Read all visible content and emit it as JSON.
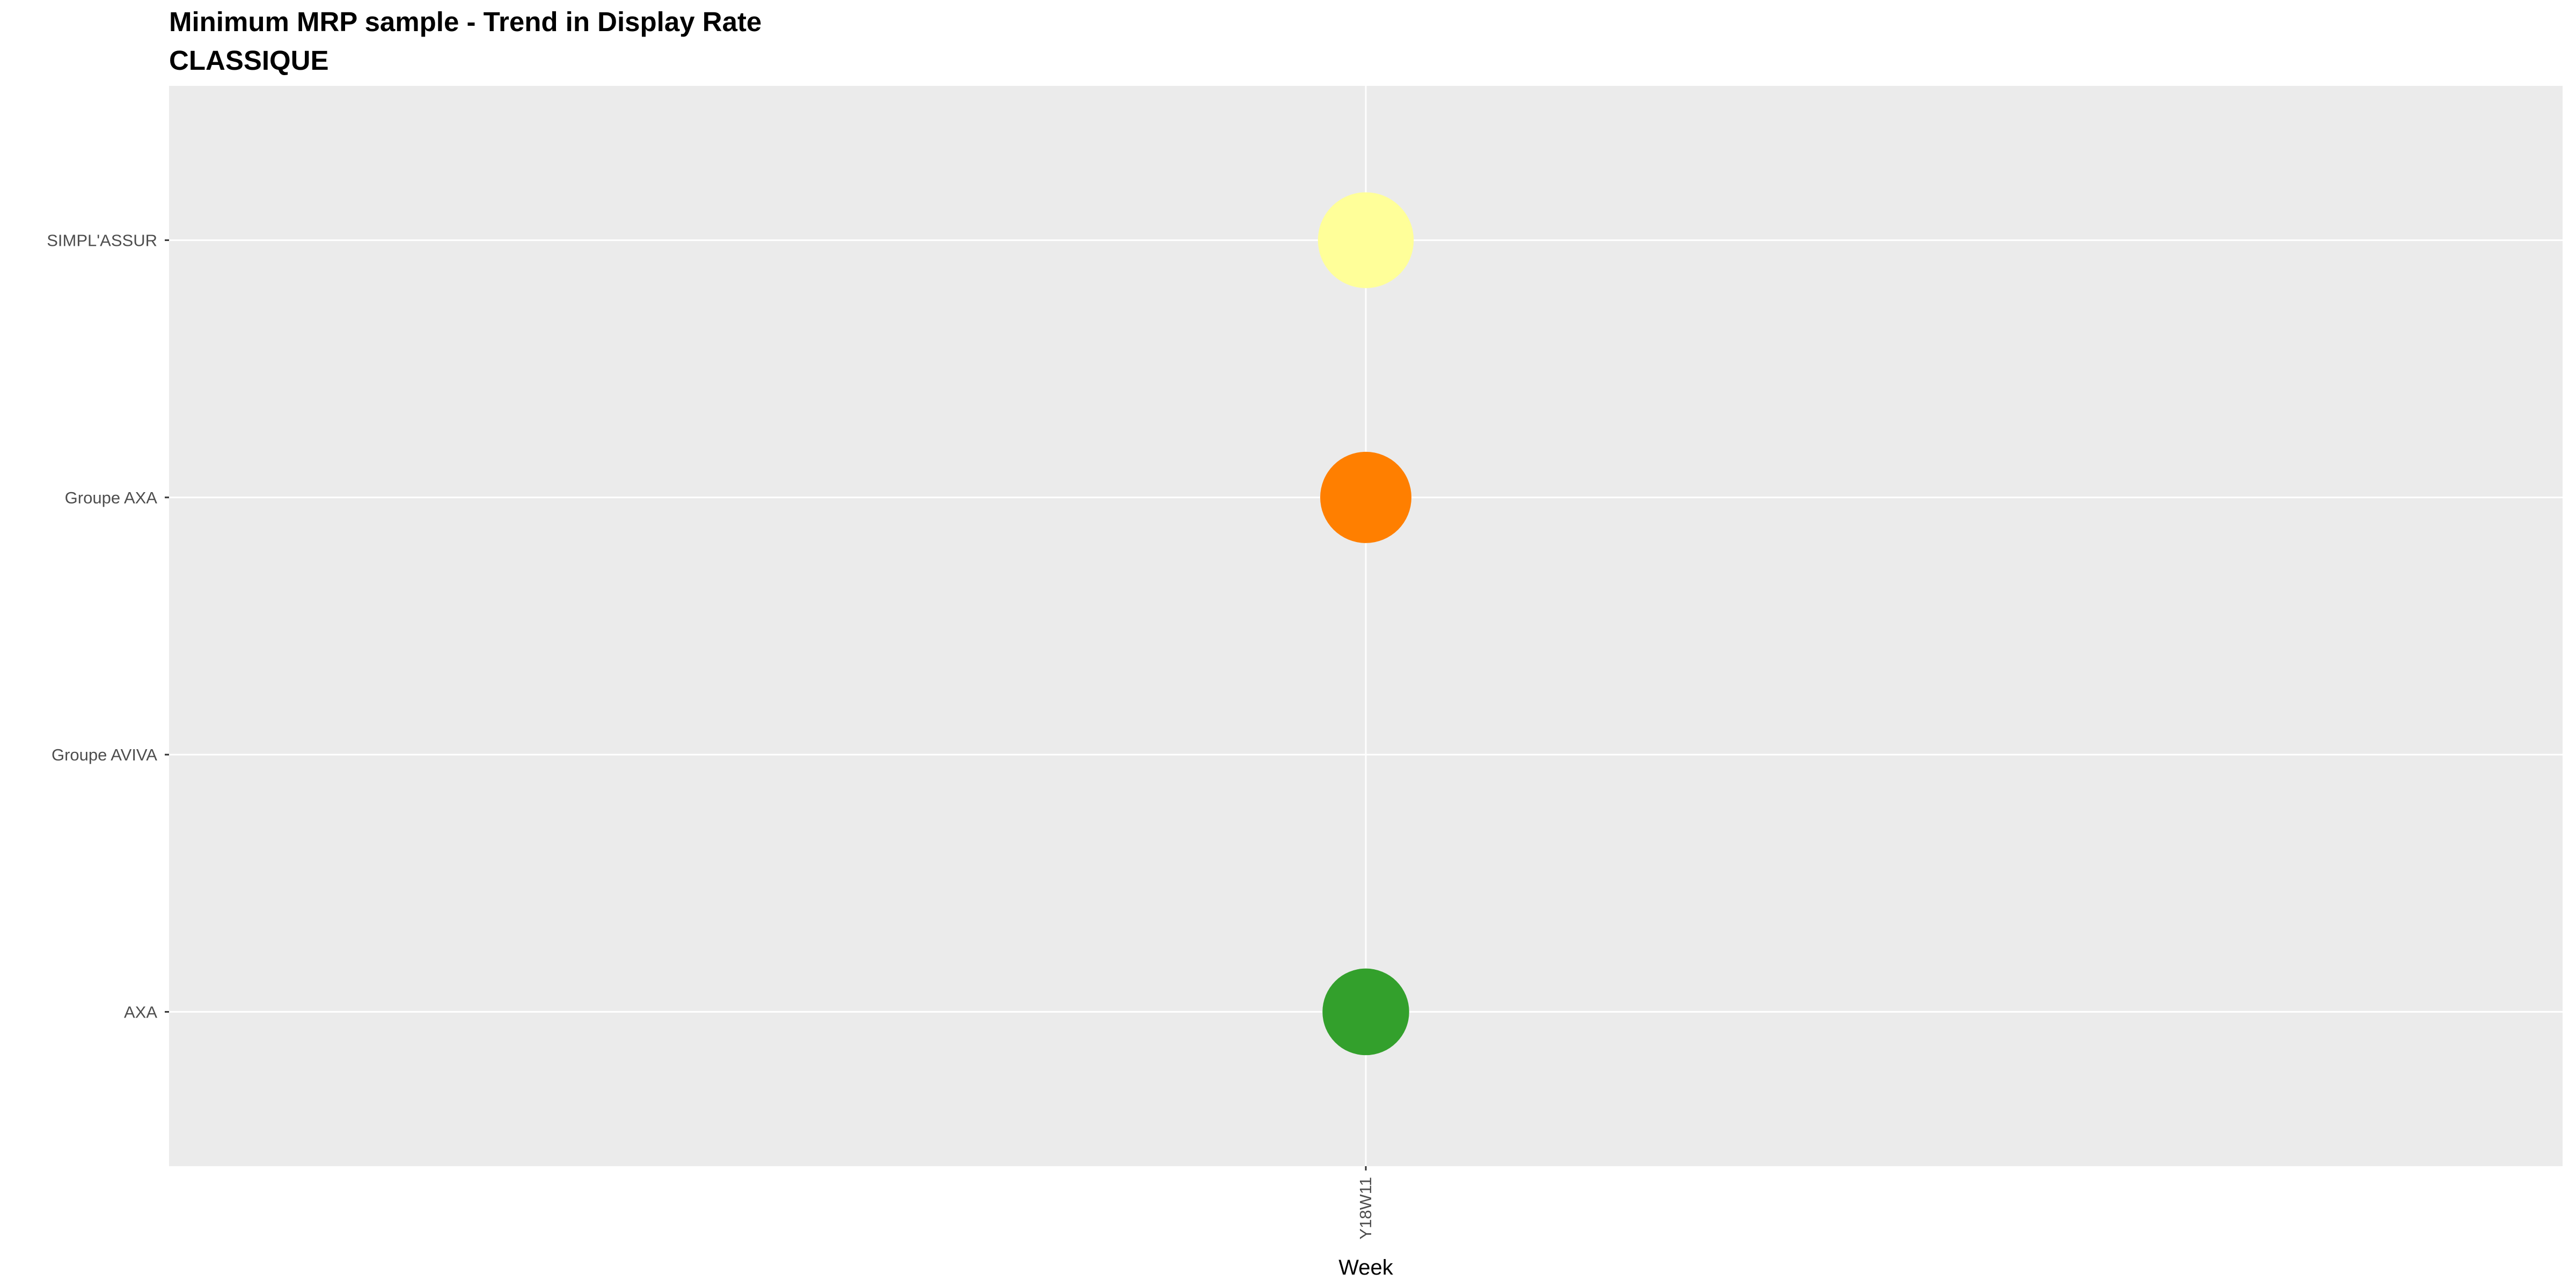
{
  "chart_data": {
    "type": "scatter",
    "title": "Minimum MRP sample - Trend in Display Rate",
    "subtitle": "CLASSIQUE",
    "xlabel": "Week",
    "ylabel": "",
    "x_categories": [
      "Y18W11"
    ],
    "y_categories": [
      "AXA",
      "Groupe AVIVA",
      "Groupe AXA",
      "SIMPL'ASSUR"
    ],
    "grid": true,
    "legend": "none",
    "panel_background": "#ebebeb",
    "gridline_color": "#ffffff",
    "points": [
      {
        "x": "Y18W11",
        "y": "SIMPL'ASSUR",
        "color": "#ffff99",
        "size": 1.05
      },
      {
        "x": "Y18W11",
        "y": "Groupe AXA",
        "color": "#ff7f00",
        "size": 1.0
      },
      {
        "x": "Y18W11",
        "y": "AXA",
        "color": "#33a02c",
        "size": 0.95
      }
    ]
  }
}
